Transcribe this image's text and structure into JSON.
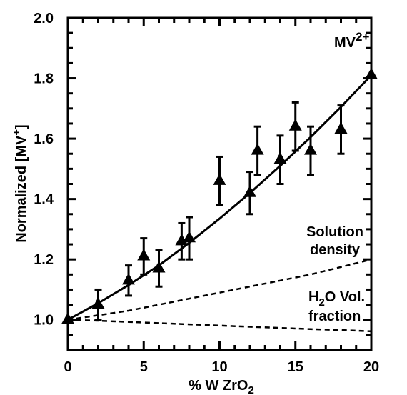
{
  "chart_data": {
    "type": "scatter",
    "xlabel": "% W ZrO",
    "xlabel_sub": "2",
    "ylabel": "Normalized  [MV",
    "ylabel_sup": "+",
    "ylabel_end": "]",
    "xlim": [
      0,
      20
    ],
    "ylim": [
      0.9,
      2.0
    ],
    "x_ticks": [
      0,
      5,
      10,
      15,
      20
    ],
    "x_tick_labels": [
      "0",
      "5",
      "10",
      "15",
      "20"
    ],
    "y_ticks": [
      1.0,
      1.2,
      1.4,
      1.6,
      1.8,
      2.0
    ],
    "y_tick_labels": [
      "1.0",
      "1.2",
      "1.4",
      "1.6",
      "1.8",
      "2.0"
    ],
    "grid": false,
    "series": [
      {
        "name": "MV2+",
        "marker": "triangle",
        "x": [
          0,
          2,
          4,
          5,
          6,
          7.5,
          8,
          10,
          12,
          12.5,
          14,
          15,
          16,
          18,
          20
        ],
        "y": [
          1.0,
          1.05,
          1.13,
          1.21,
          1.17,
          1.26,
          1.27,
          1.46,
          1.42,
          1.56,
          1.53,
          1.64,
          1.56,
          1.63,
          1.81
        ],
        "err": [
          0.0,
          0.05,
          0.05,
          0.06,
          0.06,
          0.06,
          0.07,
          0.08,
          0.07,
          0.08,
          0.08,
          0.08,
          0.08,
          0.08,
          0.0
        ]
      }
    ],
    "fit_line": {
      "style": "solid",
      "x": [
        0,
        2,
        4,
        6,
        8,
        10,
        12,
        14,
        16,
        18,
        20
      ],
      "y": [
        1.0,
        1.055,
        1.115,
        1.18,
        1.255,
        1.335,
        1.42,
        1.51,
        1.605,
        1.705,
        1.81
      ]
    },
    "reference_lines": [
      {
        "style": "dashed",
        "x": [
          0,
          2,
          4,
          6,
          8,
          10,
          12,
          14,
          16,
          18,
          20
        ],
        "y": [
          1.0,
          1.015,
          1.03,
          1.05,
          1.07,
          1.09,
          1.11,
          1.13,
          1.15,
          1.175,
          1.2
        ]
      },
      {
        "style": "dashed",
        "x": [
          0,
          2,
          4,
          6,
          8,
          10,
          12,
          14,
          16,
          18,
          20
        ],
        "y": [
          1.0,
          0.997,
          0.993,
          0.989,
          0.985,
          0.981,
          0.977,
          0.973,
          0.969,
          0.966,
          0.962
        ]
      }
    ],
    "annotations": [
      {
        "id": "mv",
        "text": "MV",
        "sup": "2+"
      },
      {
        "id": "solution-density-1",
        "text": "Solution"
      },
      {
        "id": "solution-density-2",
        "text": "density"
      },
      {
        "id": "h2o-1",
        "text": "H",
        "sub": "2",
        "text_end": "O Vol."
      },
      {
        "id": "h2o-2",
        "text": "fraction"
      }
    ]
  }
}
